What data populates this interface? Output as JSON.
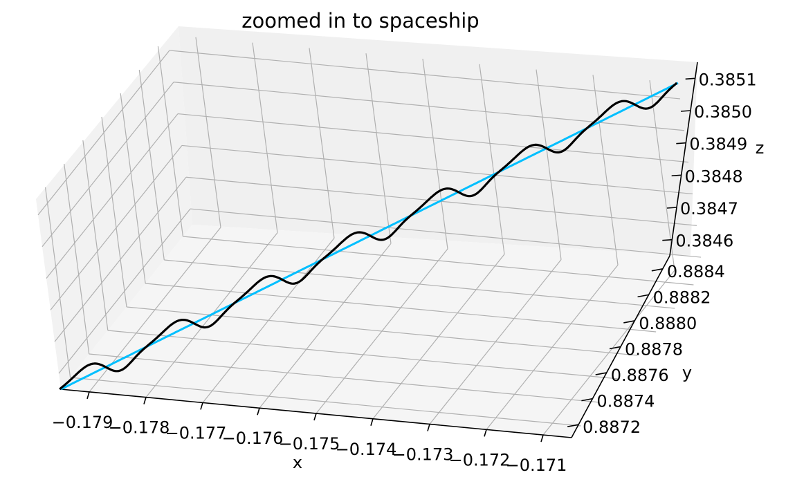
{
  "chart_data": {
    "type": "line",
    "projection": "3d",
    "title": "zoomed in to spaceship",
    "xlabel": "x",
    "ylabel": "y",
    "zlabel": "z",
    "grid": true,
    "xlim": [
      -0.1795,
      -0.1705
    ],
    "ylim": [
      0.88715,
      0.88855
    ],
    "zlim": [
      0.38452,
      0.38515
    ],
    "x_ticks": [
      "−0.179",
      "−0.178",
      "−0.177",
      "−0.176",
      "−0.175",
      "−0.174",
      "−0.173",
      "−0.172",
      "−0.171"
    ],
    "y_ticks": [
      "0.8872",
      "0.8874",
      "0.8876",
      "0.8878",
      "0.8880",
      "0.8882",
      "0.8884"
    ],
    "z_ticks": [
      "0.3846",
      "0.3847",
      "0.3848",
      "0.3849",
      "0.3850",
      "0.3851"
    ],
    "series": [
      {
        "color": "#00bfff",
        "style": "straight",
        "start": {
          "x": -0.1795,
          "y": 0.88715,
          "z": 0.38452
        },
        "end": {
          "x": -0.1705,
          "y": 0.88855,
          "z": 0.38515
        }
      },
      {
        "color": "#000000",
        "style": "oscillating",
        "start": {
          "x": -0.1795,
          "y": 0.88715,
          "z": 0.38452
        },
        "end": {
          "x": -0.1705,
          "y": 0.88855,
          "z": 0.38515
        },
        "oscillations": 7
      }
    ]
  }
}
